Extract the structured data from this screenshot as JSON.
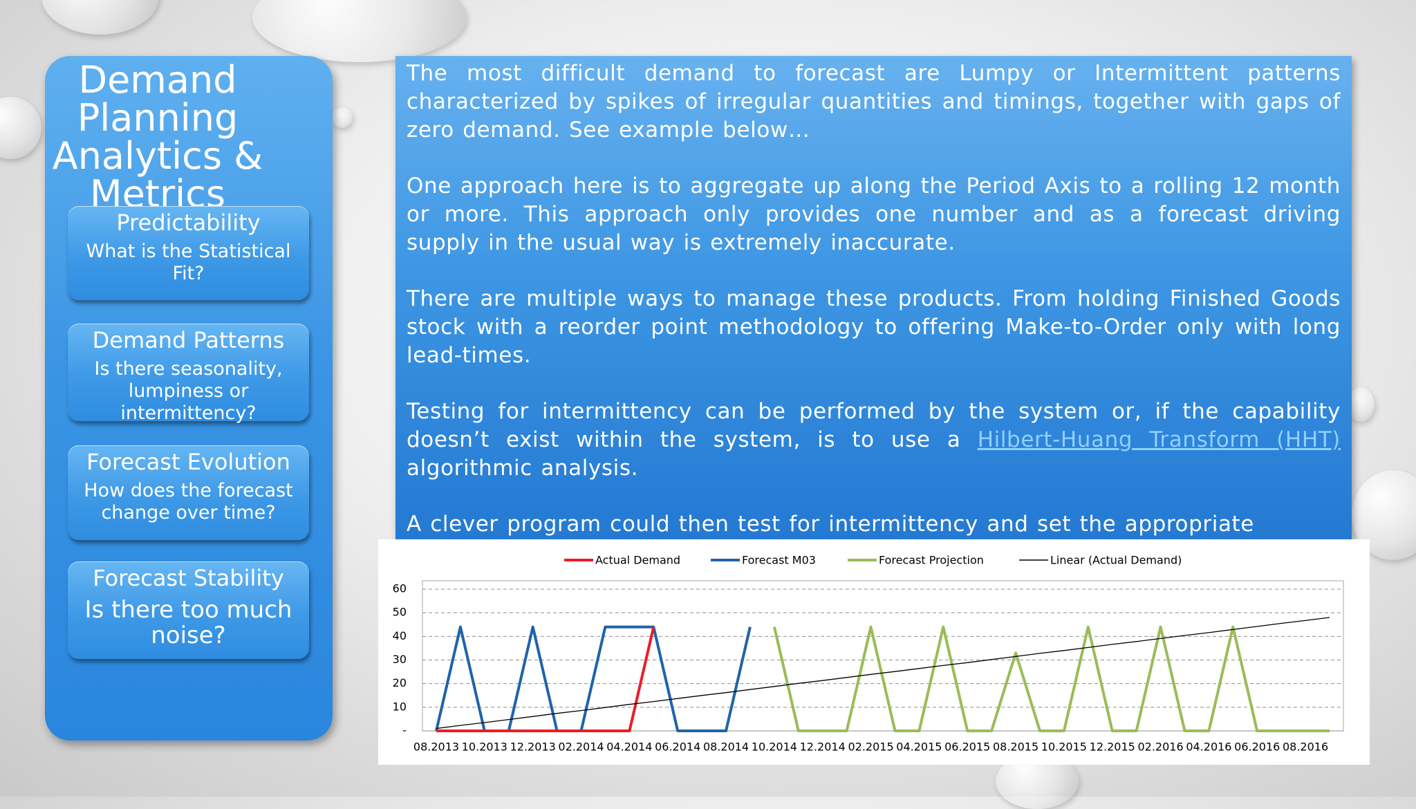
{
  "sidebar": {
    "title": "Demand Planning Analytics & Metrics",
    "cards": [
      {
        "heading": "Predictability",
        "body": "What is the Statistical Fit?"
      },
      {
        "heading": "Demand Patterns",
        "body": "Is there seasonality, lumpiness or intermittency?"
      },
      {
        "heading": "Forecast Evolution",
        "body": "How does the forecast change over time?"
      },
      {
        "heading": "Forecast Stability",
        "body": "Is there too much noise?"
      }
    ]
  },
  "text_panel": {
    "paragraphs": [
      "The most difficult demand to forecast are Lumpy or Intermittent patterns characterized by spikes of irregular quantities and timings, together with gaps of zero demand. See example below…",
      "One approach here is to aggregate up along the Period Axis to a rolling 12 month or more. This approach only provides one number and as a forecast driving supply in the usual way is extremely inaccurate.",
      "There are multiple ways to manage these products. From holding Finished Goods stock with a reorder point methodology to offering Make-to-Order only with long lead-times.",
      {
        "text": "Testing for intermittency can be performed by the system or, if the capability doesn’t exist within the system, is to use a",
        "link": "Hilbert-Huang Transform (HHT)",
        "after": "algorithmic analysis."
      },
      "A clever program could then test for intermittency and set the appropriate"
    ]
  },
  "chart_data": {
    "type": "line",
    "categories": [
      "08.2013",
      null,
      "10.2013",
      null,
      "12.2013",
      null,
      "02.2014",
      null,
      "04.2014",
      null,
      "06.2014",
      null,
      "08.2014",
      null,
      "10.2014",
      null,
      "12.2014",
      null,
      "02.2015",
      null,
      "04.2015",
      null,
      "06.2015",
      null,
      "08.2015",
      null,
      "10.2015",
      null,
      "12.2015",
      null,
      "02.2016",
      null,
      "04.2016",
      null,
      "06.2016",
      null,
      "08.2016",
      null
    ],
    "series": [
      {
        "name": "Actual Demand",
        "color": "#ee1c25",
        "line_width": 4,
        "values": [
          0,
          0,
          0,
          0,
          0,
          0,
          0,
          0,
          0,
          44,
          null,
          null,
          null,
          null,
          null,
          null,
          null,
          null,
          null,
          null,
          null,
          null,
          null,
          null,
          null,
          null,
          null,
          null,
          null,
          null,
          null,
          null,
          null,
          null,
          null,
          null,
          null,
          null
        ]
      },
      {
        "name": "Forecast M03",
        "color": "#1f64a8",
        "line_width": 4,
        "values": [
          0,
          44,
          0,
          0,
          44,
          0,
          0,
          44,
          44,
          44,
          0,
          0,
          0,
          44,
          null,
          null,
          null,
          null,
          null,
          null,
          null,
          null,
          null,
          null,
          null,
          null,
          null,
          null,
          null,
          null,
          null,
          null,
          null,
          null,
          null,
          null,
          null,
          null
        ]
      },
      {
        "name": "Forecast Projection",
        "color": "#9bbb59",
        "line_width": 4,
        "values": [
          null,
          null,
          null,
          null,
          null,
          null,
          null,
          null,
          null,
          null,
          null,
          null,
          null,
          null,
          44,
          0,
          0,
          0,
          44,
          0,
          0,
          44,
          0,
          0,
          33,
          0,
          0,
          44,
          0,
          0,
          44,
          0,
          0,
          44,
          0,
          0,
          0,
          0
        ]
      },
      {
        "name": "Linear (Actual Demand)",
        "color": "#000000",
        "line_width": 1.3,
        "values": [
          1.0,
          2.3,
          3.5,
          4.8,
          6.1,
          7.4,
          8.6,
          9.9,
          11.2,
          12.4,
          13.7,
          15.0,
          16.2,
          17.5,
          18.8,
          20.1,
          21.3,
          22.6,
          23.9,
          25.1,
          26.4,
          27.7,
          28.9,
          30.2,
          31.5,
          32.8,
          34.0,
          35.3,
          36.6,
          37.8,
          39.1,
          40.4,
          41.6,
          42.9,
          44.2,
          45.5,
          46.7,
          48.0
        ]
      }
    ],
    "ylim": [
      0,
      60
    ],
    "yticks": [
      {
        "value": 0,
        "label": "-"
      },
      10,
      20,
      30,
      40,
      50,
      60
    ],
    "grid": true,
    "legend": "top"
  }
}
